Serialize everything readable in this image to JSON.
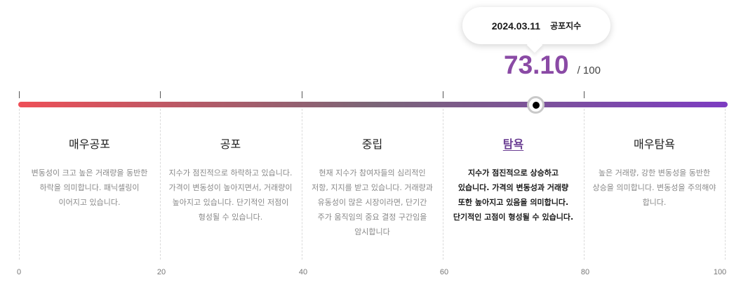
{
  "tooltip": {
    "date": "2024.03.11",
    "label": "공포지수"
  },
  "score": {
    "value": "73.10",
    "max": "/ 100",
    "numeric": 73.1,
    "color": "#8a4aa5"
  },
  "gauge": {
    "gradient_colors": [
      "#ee4f57",
      "#7b6577",
      "#7d3cc2"
    ],
    "marker_icon": "marker-dot-icon"
  },
  "zones": [
    {
      "title": "매우공포",
      "desc": "변동성이 크고 높은 거래량을 동반한 하락을 의미합니다. 패닉셀링이 이어지고 있습니다.",
      "active": false
    },
    {
      "title": "공포",
      "desc": "지수가 점진적으로 하락하고 있습니다. 가격이 변동성이 높아지면서, 거래량이 높아지고 있습니다. 단기적인 저점이 형성될 수 있습니다.",
      "active": false
    },
    {
      "title": "중립",
      "desc": "현재 지수가 참여자들의 심리적인 저항, 지지를 받고 있습니다. 거래량과 유동성이 많은 시장이라면, 단기간 주가 움직임의 중요 결정 구간임을 암시합니다",
      "active": false
    },
    {
      "title": "탐욕",
      "desc": "지수가 점진적으로 상승하고 있습니다. 가격의 변동성과 거래량 또한 높아지고 있음을 의미합니다. 단기적인 고점이 형성될 수 있습니다.",
      "active": true
    },
    {
      "title": "매우탐욕",
      "desc": "높은 거래량, 강한 변동성을 동반한 상승을 의미합니다. 변동성을 주의해야 합니다.",
      "active": false
    }
  ],
  "scale": [
    "0",
    "20",
    "40",
    "60",
    "80",
    "100"
  ]
}
